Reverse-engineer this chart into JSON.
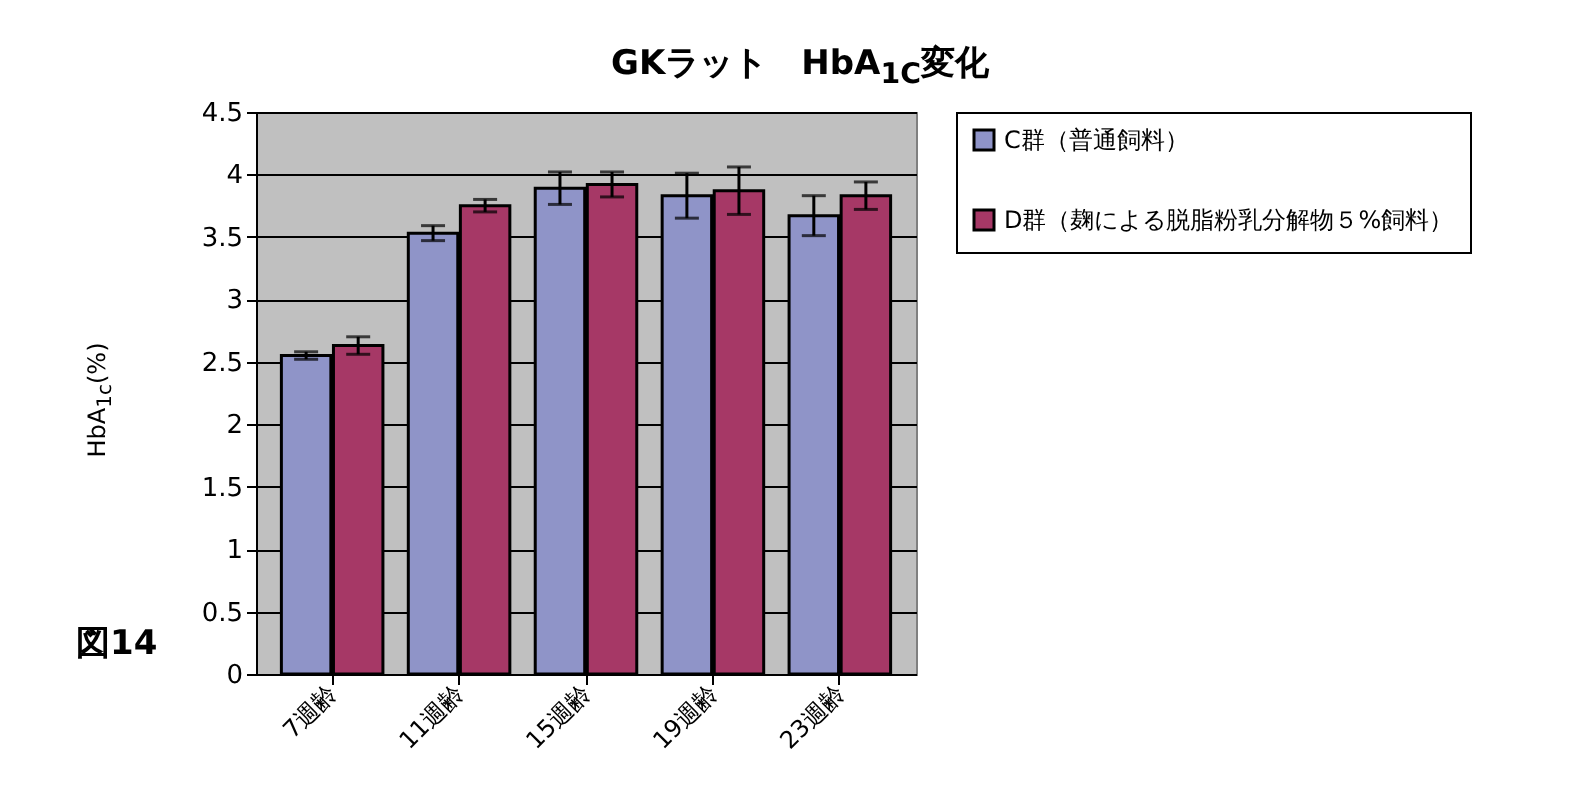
{
  "chart_data": {
    "type": "bar",
    "title": "GKラット　HbA$_{1C}$変化",
    "ylabel": "HbA$_{1c}$(%)",
    "annotations": [
      "図14"
    ],
    "categories": [
      "7週齢",
      "11週齢",
      "15週齢",
      "19週齢",
      "23週齢"
    ],
    "series": [
      {
        "name": "C群（普通飼料）",
        "color": "#8f94c8",
        "values": [
          2.55,
          3.53,
          3.89,
          3.83,
          3.67
        ],
        "errors": [
          0.03,
          0.06,
          0.13,
          0.18,
          0.16
        ]
      },
      {
        "name": "D群（麹による脱脂粉乳分解物５%飼料）",
        "color": "#a63866",
        "values": [
          2.63,
          3.75,
          3.92,
          3.87,
          3.83
        ],
        "errors": [
          0.07,
          0.05,
          0.1,
          0.19,
          0.11
        ]
      }
    ],
    "ylim": [
      0,
      4.5
    ],
    "yticks": [
      0,
      0.5,
      1,
      1.5,
      2,
      2.5,
      3,
      3.5,
      4,
      4.5
    ],
    "grid": "y",
    "legend": "right"
  }
}
